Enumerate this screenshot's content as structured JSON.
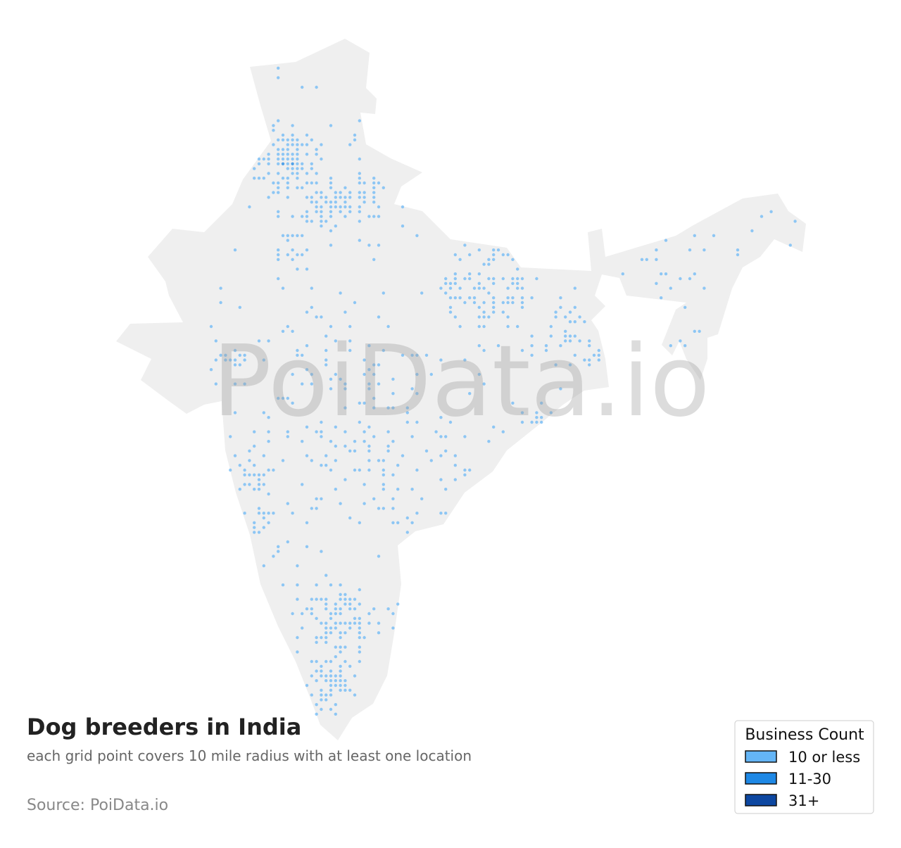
{
  "title": "Dog breeders in India",
  "subtitle": "each grid point covers 10 mile radius with at least one location",
  "source": "Source: PoiData.io",
  "watermark": "PoiData.io",
  "legend": {
    "title": "Business Count",
    "items": [
      {
        "label": "10 or less",
        "color": "#64b5f6"
      },
      {
        "label": "11-30",
        "color": "#1e88e5"
      },
      {
        "label": "31+",
        "color": "#0d47a1"
      }
    ]
  }
}
